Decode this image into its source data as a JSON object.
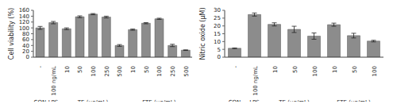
{
  "chart_data": [
    {
      "type": "bar",
      "y_label": "Cell viability (%)",
      "categories": [
        "-",
        "100 ng/mL",
        "10",
        "50",
        "100",
        "250",
        "500",
        "10",
        "50",
        "100",
        "250",
        "500"
      ],
      "category_groups": [
        "CON",
        "LPS",
        "TE (μg/mL)",
        "TE (μg/mL)",
        "TE (μg/mL)",
        "TE (μg/mL)",
        "TE (μg/mL)",
        "FTE (μg/mL)",
        "FTE (μg/mL)",
        "FTE (μg/mL)",
        "FTE (μg/mL)",
        "FTE (μg/mL)"
      ],
      "values": [
        100,
        118,
        97,
        138,
        147,
        137,
        40,
        94,
        116,
        131,
        40,
        24
      ],
      "errors": [
        5,
        4,
        3,
        3,
        2,
        3,
        3,
        2,
        2,
        2,
        4,
        1
      ],
      "color": "#8c8c8c",
      "ylim": [
        0,
        160
      ],
      "yticks": [
        0,
        20,
        40,
        60,
        80,
        100,
        120,
        140,
        160
      ],
      "grid": false
    },
    {
      "type": "bar",
      "y_label": "Nitric oxide (μM)",
      "categories": [
        "-",
        "100 ng/mL",
        "10",
        "50",
        "100",
        "10",
        "50",
        "100"
      ],
      "category_groups": [
        "CON",
        "LPS",
        "TE (μg/mL)",
        "TE (μg/mL)",
        "TE (μg/mL)",
        "FTE (μg/mL)",
        "FTE (μg/mL)",
        "FTE (μg/mL)"
      ],
      "values": [
        5.7,
        27.3,
        21.0,
        17.8,
        13.5,
        20.8,
        13.8,
        10.3
      ],
      "errors": [
        0.2,
        1.0,
        1.0,
        2.0,
        2.0,
        1.0,
        1.5,
        0.5
      ],
      "color": "#8c8c8c",
      "ylim": [
        0,
        30
      ],
      "yticks": [
        0,
        5,
        10,
        15,
        20,
        25,
        30
      ],
      "grid": false
    }
  ]
}
